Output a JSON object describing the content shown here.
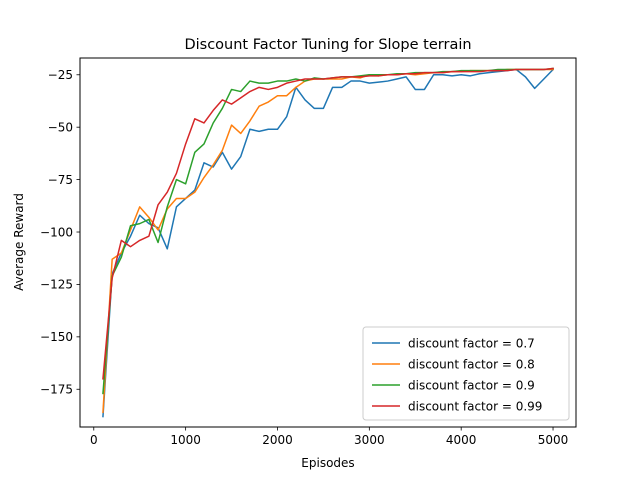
{
  "chart_data": {
    "type": "line",
    "title": "Discount Factor Tuning for Slope terrain",
    "xlabel": "Episodes",
    "ylabel": "Average Reward",
    "xlim": [
      -150,
      5250
    ],
    "ylim": [
      -193,
      -17
    ],
    "xticks": [
      0,
      1000,
      2000,
      3000,
      4000,
      5000
    ],
    "yticks": [
      -175,
      -150,
      -125,
      -100,
      -75,
      -50,
      -25
    ],
    "grid": false,
    "legend_position": "lower right",
    "x": [
      100,
      200,
      300,
      400,
      500,
      600,
      700,
      800,
      900,
      1000,
      1100,
      1200,
      1300,
      1400,
      1500,
      1600,
      1700,
      1800,
      1900,
      2000,
      2100,
      2200,
      2300,
      2400,
      2500,
      2600,
      2700,
      2800,
      2900,
      3000,
      3100,
      3200,
      3300,
      3400,
      3500,
      3600,
      3700,
      3800,
      3900,
      4000,
      4100,
      4200,
      4300,
      4400,
      4500,
      4600,
      4700,
      4800,
      4900,
      5000
    ],
    "series": [
      {
        "name": "discount factor = 0.7",
        "color": "#1f77b4",
        "values": [
          -188,
          -120,
          -110,
          -102,
          -92,
          -96,
          -98,
          -108,
          -88,
          -84,
          -80,
          -67,
          -69,
          -62,
          -70,
          -64,
          -51,
          -52,
          -51,
          -51,
          -45,
          -31,
          -37,
          -41,
          -41,
          -31,
          -31,
          -28,
          -28,
          -29,
          -28.5,
          -28,
          -27,
          -26,
          -32,
          -32,
          -25,
          -25,
          -25.5,
          -25,
          -25.5,
          -24.5,
          -24,
          -23.5,
          -23,
          -22.5,
          -26,
          -31.5,
          -27,
          -22.5
        ]
      },
      {
        "name": "discount factor = 0.8",
        "color": "#ff7f0e",
        "values": [
          -186,
          -113,
          -110,
          -99,
          -88,
          -93,
          -99,
          -89,
          -84,
          -84,
          -81,
          -74,
          -68,
          -61,
          -49,
          -53,
          -47,
          -40,
          -38,
          -35,
          -35,
          -31,
          -28,
          -27,
          -27,
          -27,
          -27,
          -26,
          -26.5,
          -25,
          -25.5,
          -25,
          -25,
          -24.5,
          -25,
          -24.5,
          -24,
          -24,
          -23.5,
          -23.5,
          -23,
          -23,
          -23,
          -23,
          -22.5,
          -22.5,
          -22.5,
          -22.5,
          -22.5,
          -22.5
        ]
      },
      {
        "name": "discount factor = 0.9",
        "color": "#2ca02c",
        "values": [
          -177,
          -121,
          -112,
          -97,
          -96,
          -94,
          -105,
          -88,
          -75,
          -77,
          -62,
          -58,
          -48,
          -41,
          -32,
          -33,
          -28,
          -29,
          -29,
          -28,
          -28,
          -27,
          -28,
          -26.5,
          -27,
          -26.5,
          -26,
          -26,
          -25.5,
          -25,
          -25,
          -25,
          -24.5,
          -24.5,
          -24,
          -24,
          -24,
          -23.5,
          -23.5,
          -23,
          -23,
          -23,
          -23,
          -22.5,
          -22.5,
          -22.5,
          -22.5,
          -22.5,
          -22.5,
          -22
        ]
      },
      {
        "name": "discount factor = 0.99",
        "color": "#d62728",
        "values": [
          -170,
          -122,
          -104,
          -107,
          -104,
          -102,
          -87,
          -81,
          -72,
          -58,
          -46,
          -48,
          -42,
          -37,
          -39,
          -36,
          -33,
          -31,
          -32,
          -31,
          -29,
          -28,
          -27,
          -27,
          -27,
          -26.5,
          -26,
          -26,
          -26,
          -25.5,
          -25.5,
          -25,
          -25,
          -24.5,
          -24.5,
          -24,
          -24,
          -24,
          -23.5,
          -23.5,
          -23.5,
          -23.5,
          -23,
          -23,
          -23,
          -22.5,
          -22.5,
          -22.5,
          -22.5,
          -22
        ]
      }
    ]
  }
}
